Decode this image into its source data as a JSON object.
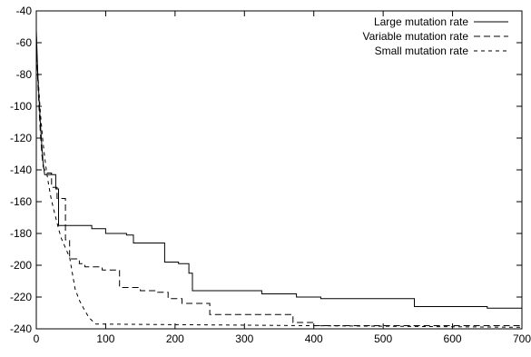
{
  "chart_data": {
    "type": "line",
    "title": "",
    "xlabel": "",
    "ylabel": "",
    "xlim": [
      0,
      700
    ],
    "ylim": [
      -240,
      -40
    ],
    "xticks": [
      "0",
      "100",
      "200",
      "300",
      "400",
      "500",
      "600",
      "700"
    ],
    "yticks": [
      "-40",
      "-60",
      "-80",
      "-100",
      "-120",
      "-140",
      "-160",
      "-180",
      "-200",
      "-220",
      "-240"
    ],
    "grid": false,
    "legend_position": "top-right",
    "series": [
      {
        "name": "Large mutation rate",
        "style": "solid",
        "points": [
          [
            0,
            -52
          ],
          [
            2,
            -78
          ],
          [
            4,
            -96
          ],
          [
            6,
            -112
          ],
          [
            8,
            -125
          ],
          [
            10,
            -136
          ],
          [
            12,
            -143
          ],
          [
            28,
            -143
          ],
          [
            28,
            -152
          ],
          [
            32,
            -152
          ],
          [
            32,
            -175
          ],
          [
            80,
            -175
          ],
          [
            80,
            -177
          ],
          [
            100,
            -177
          ],
          [
            100,
            -180
          ],
          [
            130,
            -180
          ],
          [
            130,
            -181
          ],
          [
            140,
            -181
          ],
          [
            140,
            -186
          ],
          [
            185,
            -186
          ],
          [
            185,
            -198
          ],
          [
            205,
            -198
          ],
          [
            205,
            -199
          ],
          [
            220,
            -199
          ],
          [
            220,
            -205
          ],
          [
            225,
            -205
          ],
          [
            225,
            -216
          ],
          [
            325,
            -216
          ],
          [
            325,
            -218
          ],
          [
            375,
            -218
          ],
          [
            375,
            -220
          ],
          [
            410,
            -220
          ],
          [
            410,
            -221
          ],
          [
            545,
            -221
          ],
          [
            545,
            -226
          ],
          [
            650,
            -226
          ],
          [
            650,
            -227
          ],
          [
            700,
            -227
          ],
          [
            700,
            -229
          ]
        ]
      },
      {
        "name": "Variable mutation rate",
        "style": "dashed",
        "points": [
          [
            0,
            -55
          ],
          [
            2,
            -82
          ],
          [
            4,
            -102
          ],
          [
            6,
            -118
          ],
          [
            8,
            -130
          ],
          [
            10,
            -138
          ],
          [
            14,
            -142
          ],
          [
            22,
            -142
          ],
          [
            22,
            -151
          ],
          [
            30,
            -151
          ],
          [
            30,
            -158
          ],
          [
            42,
            -158
          ],
          [
            42,
            -184
          ],
          [
            48,
            -184
          ],
          [
            48,
            -196
          ],
          [
            62,
            -196
          ],
          [
            62,
            -199
          ],
          [
            70,
            -199
          ],
          [
            70,
            -201
          ],
          [
            95,
            -201
          ],
          [
            95,
            -203
          ],
          [
            120,
            -203
          ],
          [
            120,
            -214
          ],
          [
            150,
            -214
          ],
          [
            150,
            -216
          ],
          [
            175,
            -216
          ],
          [
            175,
            -217
          ],
          [
            190,
            -217
          ],
          [
            190,
            -221
          ],
          [
            210,
            -221
          ],
          [
            210,
            -224
          ],
          [
            250,
            -224
          ],
          [
            250,
            -231
          ],
          [
            370,
            -231
          ],
          [
            370,
            -236
          ],
          [
            400,
            -236
          ],
          [
            400,
            -238
          ],
          [
            700,
            -238
          ]
        ]
      },
      {
        "name": "Small mutation rate",
        "style": "dashed",
        "points": [
          [
            0,
            -65
          ],
          [
            3,
            -85
          ],
          [
            6,
            -105
          ],
          [
            9,
            -120
          ],
          [
            12,
            -132
          ],
          [
            15,
            -142
          ],
          [
            18,
            -150
          ],
          [
            21,
            -157
          ],
          [
            24,
            -163
          ],
          [
            28,
            -170
          ],
          [
            32,
            -177
          ],
          [
            36,
            -183
          ],
          [
            40,
            -187
          ],
          [
            44,
            -191
          ],
          [
            48,
            -195
          ],
          [
            52,
            -205
          ],
          [
            56,
            -215
          ],
          [
            62,
            -222
          ],
          [
            68,
            -227
          ],
          [
            76,
            -233
          ],
          [
            86,
            -237
          ],
          [
            100,
            -237
          ],
          [
            700,
            -239
          ]
        ]
      }
    ]
  }
}
